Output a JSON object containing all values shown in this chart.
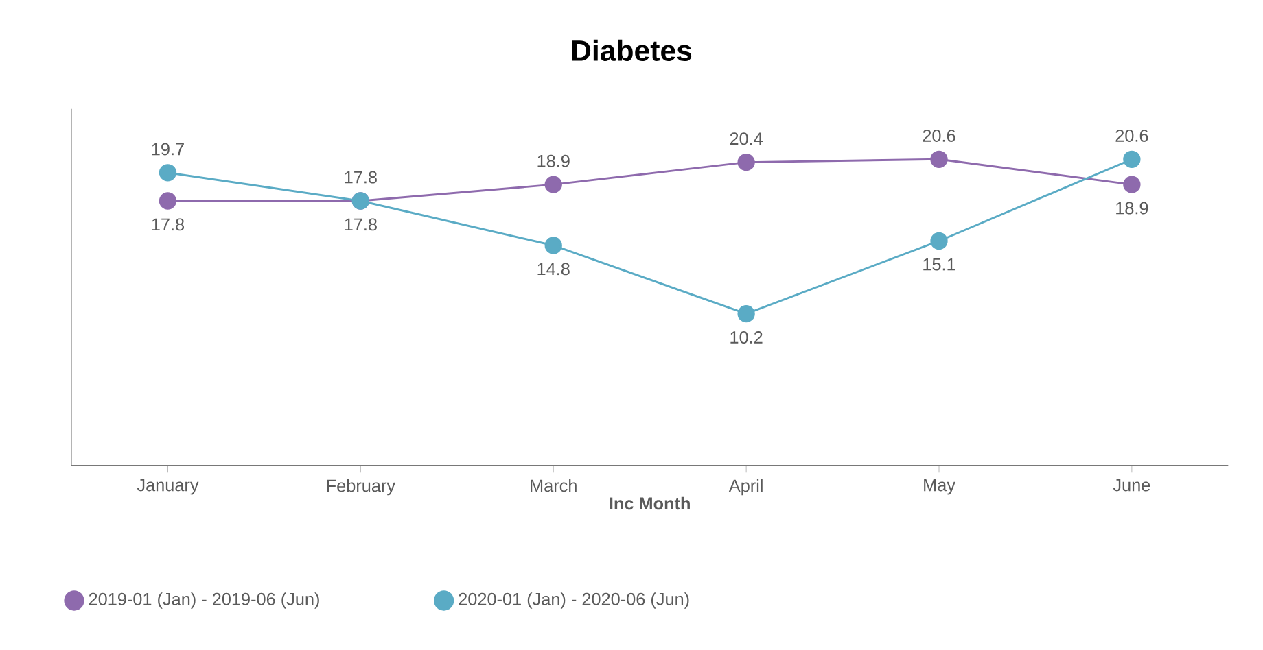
{
  "chart_data": {
    "type": "line",
    "title": "Diabetes",
    "xlabel": "Inc Month",
    "categories": [
      "January",
      "February",
      "March",
      "April",
      "May",
      "June"
    ],
    "series": [
      {
        "name": "2019-01 (Jan) - 2019-06 (Jun)",
        "color": "#8e6aad",
        "values": [
          17.8,
          17.8,
          18.9,
          20.4,
          20.6,
          18.9
        ]
      },
      {
        "name": "2020-01 (Jan) - 2020-06 (Jun)",
        "color": "#5aabc5",
        "values": [
          19.7,
          17.8,
          14.8,
          10.2,
          15.1,
          20.6
        ]
      }
    ],
    "ylim": [
      0,
      24
    ],
    "data_labels": true,
    "tick_labels": "x",
    "grid": false,
    "legend": "bottom left",
    "marker": "circle",
    "line_style": "solid"
  }
}
